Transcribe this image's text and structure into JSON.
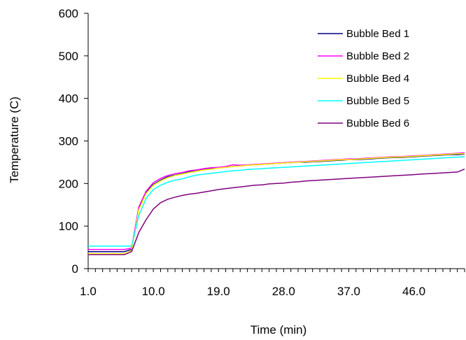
{
  "chart_data": {
    "type": "line",
    "title": "",
    "xlabel": "Time (min)",
    "ylabel": "Temperature (C)",
    "x_ticks": [
      "1.0",
      "10.0",
      "19.0",
      "28.0",
      "37.0",
      "46.0"
    ],
    "x_tick_values": [
      1,
      10,
      19,
      28,
      37,
      46
    ],
    "xlim": [
      1,
      53
    ],
    "ylim": [
      0,
      600
    ],
    "y_ticks": [
      0,
      100,
      200,
      300,
      400,
      500,
      600
    ],
    "grid": false,
    "legend_position": "top-right",
    "x": [
      1,
      2,
      3,
      4,
      5,
      6,
      7,
      8,
      9,
      10,
      11,
      12,
      13,
      14,
      15,
      16,
      17,
      18,
      19,
      20,
      21,
      22,
      23,
      24,
      25,
      26,
      27,
      28,
      29,
      30,
      31,
      32,
      33,
      34,
      35,
      36,
      37,
      38,
      39,
      40,
      41,
      42,
      43,
      44,
      45,
      46,
      47,
      48,
      49,
      50,
      51,
      52,
      53
    ],
    "series": [
      {
        "name": "Bubble Bed 1",
        "color": "#000080",
        "values": [
          40,
          40,
          40,
          40,
          40,
          40,
          45,
          140,
          178,
          198,
          208,
          216,
          220,
          223,
          228,
          230,
          233,
          235,
          237,
          238,
          240,
          242,
          243,
          244,
          245,
          246,
          247,
          248,
          249,
          250,
          250,
          251,
          252,
          253,
          254,
          255,
          256,
          256,
          257,
          258,
          259,
          260,
          261,
          261,
          262,
          263,
          264,
          265,
          266,
          267,
          268,
          268,
          269
        ]
      },
      {
        "name": "Bubble Bed 2",
        "color": "#ff00ff",
        "values": [
          45,
          45,
          45,
          45,
          45,
          45,
          48,
          145,
          182,
          202,
          212,
          219,
          223,
          226,
          230,
          232,
          235,
          237,
          238,
          240,
          244,
          243,
          244,
          245,
          246,
          247,
          248,
          249,
          250,
          251,
          252,
          253,
          254,
          255,
          256,
          257,
          258,
          258,
          259,
          260,
          261,
          262,
          263,
          263,
          264,
          265,
          266,
          267,
          268,
          269,
          270,
          271,
          272
        ]
      },
      {
        "name": "Bubble Bed 4",
        "color": "#ffff00",
        "values": [
          35,
          35,
          35,
          35,
          35,
          35,
          42,
          138,
          176,
          196,
          206,
          214,
          219,
          222,
          226,
          229,
          232,
          234,
          236,
          238,
          240,
          241,
          243,
          244,
          245,
          246,
          247,
          248,
          249,
          250,
          251,
          252,
          253,
          254,
          255,
          256,
          256,
          257,
          258,
          259,
          260,
          261,
          262,
          262,
          263,
          264,
          265,
          266,
          267,
          268,
          269,
          270,
          270
        ]
      },
      {
        "name": "Bubble Bed 5",
        "color": "#00ffff",
        "values": [
          53,
          53,
          53,
          53,
          53,
          53,
          53,
          125,
          165,
          186,
          196,
          203,
          208,
          211,
          216,
          220,
          222,
          224,
          226,
          228,
          230,
          231,
          233,
          234,
          235,
          236,
          237,
          238,
          239,
          240,
          241,
          242,
          243,
          244,
          245,
          246,
          247,
          248,
          249,
          250,
          251,
          252,
          253,
          254,
          255,
          256,
          257,
          258,
          259,
          260,
          261,
          262,
          263
        ]
      },
      {
        "name": "Bubble Bed 6",
        "color": "#800080",
        "values": [
          33,
          33,
          33,
          33,
          33,
          33,
          40,
          85,
          115,
          140,
          155,
          163,
          168,
          172,
          175,
          177,
          180,
          183,
          186,
          188,
          190,
          192,
          194,
          196,
          197,
          199,
          200,
          201,
          203,
          204,
          206,
          207,
          208,
          209,
          210,
          211,
          212,
          213,
          214,
          215,
          216,
          217,
          218,
          219,
          220,
          221,
          222,
          223,
          224,
          225,
          226,
          227,
          234
        ]
      }
    ]
  }
}
